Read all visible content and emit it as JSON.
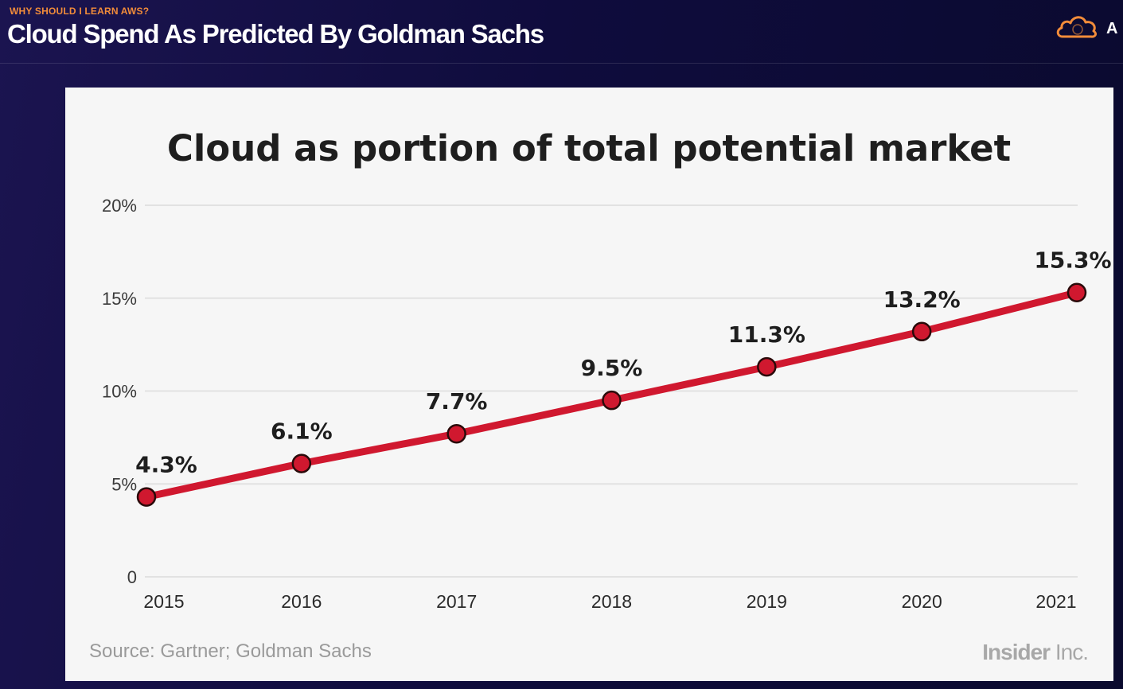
{
  "header": {
    "kicker": "WHY SHOULD I LEARN AWS?",
    "title": "Cloud Spend As Predicted By Goldman Sachs",
    "logo_icon": "cloud-icon",
    "logo_letter": "A",
    "accent_color": "#f28c3a"
  },
  "card": {
    "source": "Source: Gartner; Goldman Sachs",
    "brand_bold": "Insider",
    "brand_light": "Inc."
  },
  "chart_data": {
    "type": "line",
    "title": "Cloud as portion of total potential market",
    "xlabel": "",
    "ylabel": "",
    "categories": [
      "2015",
      "2016",
      "2017",
      "2018",
      "2019",
      "2020",
      "2021"
    ],
    "series": [
      {
        "values": [
          4.3,
          6.1,
          7.7,
          9.5,
          11.3,
          13.2,
          15.3
        ],
        "data_labels": [
          "4.3%",
          "6.1%",
          "7.7%",
          "9.5%",
          "11.3%",
          "13.2%",
          "15.3%"
        ],
        "color": "#d0182f"
      }
    ],
    "ylim": [
      0,
      20
    ],
    "yticks": [
      0,
      5,
      10,
      15,
      20
    ],
    "ytick_labels": [
      "0",
      "5%",
      "10%",
      "15%",
      "20%"
    ],
    "grid": true,
    "grid_color": "#e2e2e2"
  }
}
